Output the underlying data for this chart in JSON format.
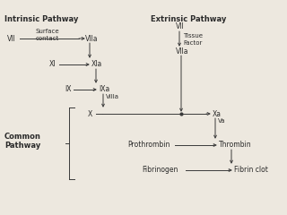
{
  "bg_color": "#ede8df",
  "text_color": "#2a2a2a",
  "arrow_color": "#3a3a3a",
  "intrinsic_title": "Intrinsic Pathway",
  "extrinsic_title": "Extrinsic Pathway",
  "common_label": "Common\nPathway",
  "fig_w": 3.2,
  "fig_h": 2.4,
  "dpi": 100
}
